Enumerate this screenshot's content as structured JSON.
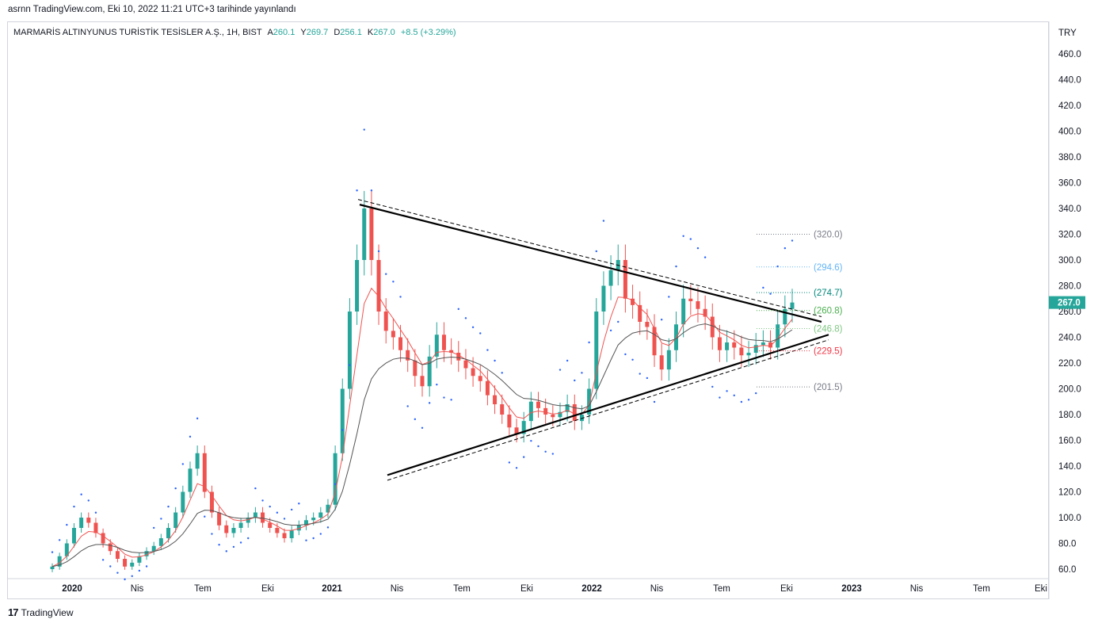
{
  "header": {
    "published": "asrnn TradingView.com, Eki 10, 2022 11:21 UTC+3 tarihinde yayınlandı"
  },
  "symbol": {
    "name": "MARMARİS ALTINYUNUS TURİSTİK TESİSLER A.Ş., 1H, BIST",
    "open_label": "A",
    "open": "260.1",
    "high_label": "Y",
    "high": "269.7",
    "low_label": "D",
    "low": "256.1",
    "close_label": "K",
    "close": "267.0",
    "change": "+8.5 (+3.29%)"
  },
  "footer": {
    "brand": "TradingView"
  },
  "colors": {
    "up": "#26a69a",
    "down": "#ef5350",
    "sar": "#2962ff",
    "ema_fast": "#ef5350",
    "ema_slow": "#555555",
    "lines": "#000000"
  },
  "chart_data": {
    "type": "candlestick",
    "currency": "TRY",
    "last_price": "267.0",
    "y_ticks": [
      "460.0",
      "440.0",
      "420.0",
      "400.0",
      "380.0",
      "360.0",
      "340.0",
      "320.0",
      "300.0",
      "280.0",
      "260.0",
      "240.0",
      "220.0",
      "200.0",
      "180.0",
      "160.0",
      "140.0",
      "120.0",
      "100.0",
      "80.0",
      "60.0"
    ],
    "y_range": [
      50,
      475
    ],
    "x_labels": [
      "2020",
      "Nis",
      "Tem",
      "Eki",
      "2021",
      "Nis",
      "Tem",
      "Eki",
      "2022",
      "Nis",
      "Tem",
      "Eki",
      "2023",
      "Nis",
      "Tem",
      "Eki"
    ],
    "levels": [
      {
        "label": "(320.0)",
        "value": 320.0,
        "color": "#787b86"
      },
      {
        "label": "(294.6)",
        "value": 294.6,
        "color": "#64b5f6"
      },
      {
        "label": "(274.7)",
        "value": 274.7,
        "color": "#00897b"
      },
      {
        "label": "(260.8)",
        "value": 260.8,
        "color": "#4caf50"
      },
      {
        "label": "(246.8)",
        "value": 246.8,
        "color": "#81c784"
      },
      {
        "label": "(229.5)",
        "value": 229.5,
        "color": "#f23645"
      },
      {
        "label": "(201.5)",
        "value": 201.5,
        "color": "#787b86"
      }
    ],
    "trendlines": {
      "upper": {
        "start": {
          "date": "2021-02",
          "value": 343
        },
        "end": {
          "date": "2022-11",
          "value": 252
        }
      },
      "lower": {
        "start": {
          "date": "2021-04",
          "value": 133
        },
        "end": {
          "date": "2022-11",
          "value": 242
        }
      }
    },
    "closes": [
      62,
      70,
      80,
      92,
      100,
      96,
      88,
      80,
      74,
      68,
      62,
      65,
      70,
      74,
      78,
      84,
      92,
      104,
      120,
      138,
      150,
      120,
      104,
      94,
      88,
      92,
      96,
      100,
      104,
      96,
      92,
      88,
      84,
      90,
      94,
      98,
      100,
      104,
      110,
      150,
      200,
      260,
      300,
      340,
      300,
      260,
      245,
      240,
      230,
      222,
      210,
      202,
      225,
      242,
      230,
      228,
      222,
      216,
      210,
      206,
      195,
      188,
      180,
      170,
      165,
      175,
      190,
      185,
      180,
      178,
      182,
      188,
      175,
      180,
      200,
      260,
      280,
      292,
      300,
      270,
      265,
      252,
      248,
      226,
      215,
      230,
      250,
      270,
      268,
      262,
      256,
      240,
      230,
      236,
      232,
      226,
      228,
      234,
      236,
      232,
      250,
      262,
      267
    ]
  }
}
